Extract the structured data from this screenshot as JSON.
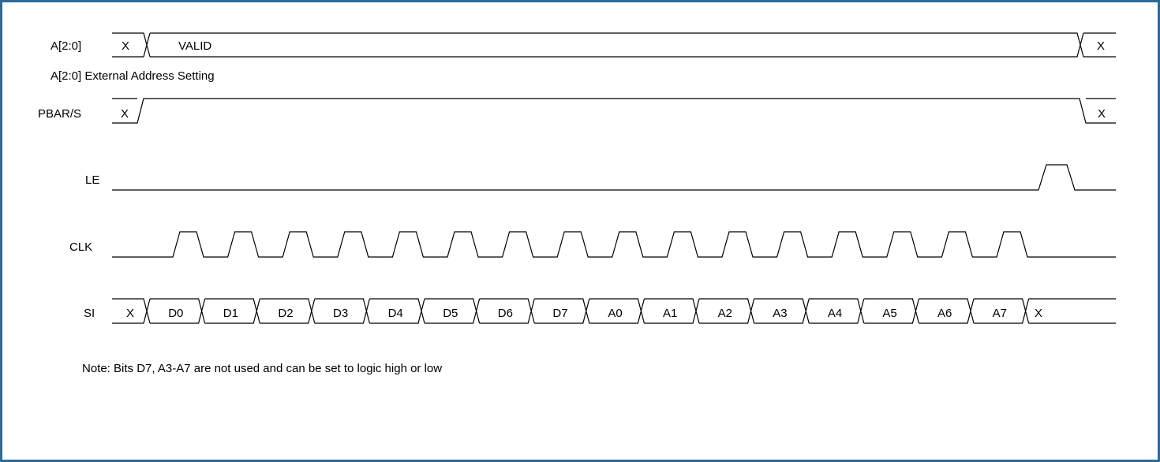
{
  "signals": {
    "addr": {
      "label": "A[2:0]",
      "cells": [
        "X",
        "VALID",
        "X"
      ],
      "caption": "A[2:0] External Address Setting"
    },
    "pbar": {
      "label": "PBAR/S",
      "cells": [
        "X",
        "X"
      ]
    },
    "le": {
      "label": "LE"
    },
    "clk": {
      "label": "CLK"
    },
    "si": {
      "label": "SI",
      "cells": [
        "X",
        "D0",
        "D1",
        "D2",
        "D3",
        "D4",
        "D5",
        "D6",
        "D7",
        "A0",
        "A1",
        "A2",
        "A3",
        "A4",
        "A5",
        "A6",
        "A7",
        "X"
      ]
    }
  },
  "note": "Note: Bits D7, A3-A7 are not used and can be set to logic high or low",
  "colors": {
    "border": "#2a6b9a",
    "line": "#000000"
  }
}
